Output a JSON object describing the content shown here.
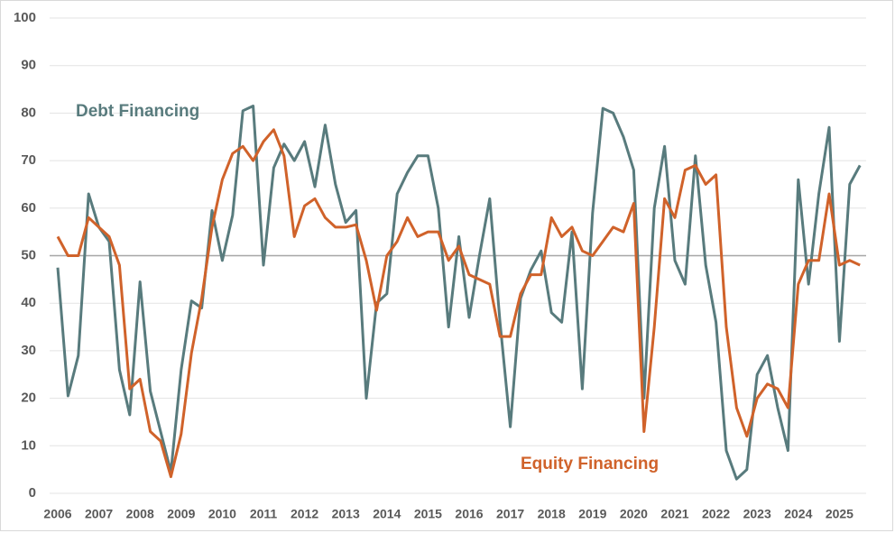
{
  "chart_data": {
    "type": "line",
    "categories": [
      "2006",
      null,
      null,
      null,
      "2007",
      null,
      null,
      null,
      "2008",
      null,
      null,
      null,
      "2009",
      null,
      null,
      null,
      "2010",
      null,
      null,
      null,
      "2011",
      null,
      null,
      null,
      "2012",
      null,
      null,
      null,
      "2013",
      null,
      null,
      null,
      "2014",
      null,
      null,
      null,
      "2015",
      null,
      null,
      null,
      "2016",
      null,
      null,
      null,
      "2017",
      null,
      null,
      null,
      "2018",
      null,
      null,
      null,
      "2019",
      null,
      null,
      null,
      "2020",
      null,
      null,
      null,
      "2021",
      null,
      null,
      null,
      "2022",
      null,
      null,
      null,
      "2023",
      null,
      null,
      null,
      "2024",
      null,
      null,
      null,
      "2025",
      null,
      null
    ],
    "series": [
      {
        "name": "Debt Financing",
        "color": "#587b7d",
        "values": [
          47.5,
          20.5,
          29,
          63,
          56,
          53,
          26,
          16.5,
          44.5,
          21.5,
          13,
          4.5,
          26,
          40.5,
          39,
          59.5,
          49,
          58.5,
          80.5,
          81.5,
          48,
          68.5,
          73.5,
          70,
          74,
          64.5,
          77.5,
          65,
          57,
          59.5,
          20,
          40,
          42,
          63,
          67.5,
          71,
          71,
          60,
          35,
          54,
          37,
          50,
          62,
          36,
          14,
          41,
          47,
          51,
          38,
          36,
          55,
          22,
          59,
          81,
          80,
          75,
          68,
          20,
          60,
          73,
          49,
          44,
          71,
          48,
          36,
          9,
          3,
          5,
          25,
          29,
          18,
          9,
          66,
          44,
          63,
          77,
          32,
          65,
          69
        ]
      },
      {
        "name": "Equity Financing",
        "color": "#d0622a",
        "values": [
          54,
          50,
          50,
          58,
          56,
          54,
          48,
          22,
          24,
          13,
          11,
          3.5,
          12.5,
          29.5,
          41,
          56,
          66,
          71.5,
          73,
          70,
          74,
          76.5,
          71,
          54,
          60.5,
          62,
          58,
          56,
          56,
          56.5,
          49,
          38.5,
          50,
          53,
          58,
          54,
          55,
          55,
          49,
          52,
          46,
          45,
          44,
          33,
          33,
          42,
          46,
          46,
          58,
          54,
          56,
          51,
          50,
          53,
          56,
          55,
          61,
          13,
          35,
          62,
          58,
          68,
          69,
          65,
          67,
          35,
          18,
          12,
          20,
          23,
          22,
          18,
          44,
          49,
          49,
          63,
          48,
          49,
          48
        ]
      }
    ],
    "ylim": [
      0,
      100
    ],
    "yticks": [
      0,
      10,
      20,
      30,
      40,
      50,
      60,
      70,
      80,
      90,
      100
    ],
    "reference_line": 50,
    "grid": true
  }
}
